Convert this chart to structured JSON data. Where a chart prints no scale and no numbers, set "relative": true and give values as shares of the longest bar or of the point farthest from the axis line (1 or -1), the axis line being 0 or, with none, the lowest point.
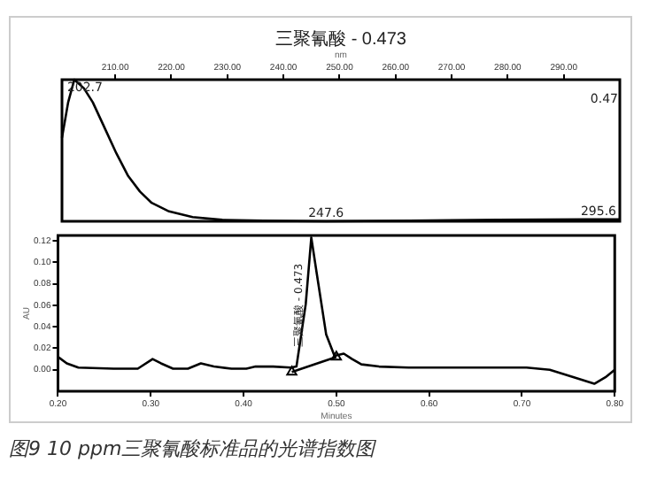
{
  "chart_data": [
    {
      "type": "line",
      "title": "三聚氰酸 - 0.473",
      "xlabel": "nm",
      "relative": true,
      "xlim": [
        200.5,
        300
      ],
      "xticks": [
        {
          "value": 210,
          "label": "210.00"
        },
        {
          "value": 220,
          "label": "220.00"
        },
        {
          "value": 230,
          "label": "230.00"
        },
        {
          "value": 240,
          "label": "240.00"
        },
        {
          "value": 250,
          "label": "250.00"
        },
        {
          "value": 260,
          "label": "260.00"
        },
        {
          "value": 270,
          "label": "270.00"
        },
        {
          "value": 280,
          "label": "280.00"
        },
        {
          "value": 290,
          "label": "290.00"
        }
      ],
      "x": [
        200.5,
        201.6,
        202.7,
        204.4,
        206.0,
        208.1,
        210.2,
        212.3,
        214.4,
        216.5,
        219.6,
        223.8,
        229.1,
        236.5,
        247.6,
        262.4,
        278.2,
        294.0,
        300.0
      ],
      "series": [
        {
          "color": "#000000",
          "values": [
            0.59,
            0.84,
            1,
            0.94,
            0.84,
            0.66,
            0.48,
            0.32,
            0.21,
            0.13,
            0.07,
            0.03,
            0.01,
            0.004,
            0,
            0.004,
            0.01,
            0.013,
            0.013
          ]
        }
      ],
      "annotations": [
        {
          "text": "202.7",
          "x": 202.7,
          "y": 1
        },
        {
          "text": "247.6",
          "x": 247.6,
          "y": 0
        },
        {
          "text": "295.6",
          "x": 295.6,
          "y": 0.013
        },
        "0.47"
      ],
      "grid": false,
      "legend": false,
      "marker": "none",
      "tick_labels": "x"
    },
    {
      "type": "line",
      "xlabel": "Minutes",
      "ylabel": "AU",
      "xlim": [
        0.2,
        0.8
      ],
      "ylim": [
        -0.02,
        0.125
      ],
      "xticks": [
        {
          "value": 0.2,
          "label": "0.20"
        },
        {
          "value": 0.3,
          "label": "0.30"
        },
        {
          "value": 0.4,
          "label": "0.40"
        },
        {
          "value": 0.5,
          "label": "0.50"
        },
        {
          "value": 0.6,
          "label": "0.60"
        },
        {
          "value": 0.7,
          "label": "0.70"
        },
        {
          "value": 0.8,
          "label": "0.80"
        }
      ],
      "yticks": [
        {
          "value": 0,
          "label": "0.00"
        },
        {
          "value": 0.02,
          "label": "0.02"
        },
        {
          "value": 0.04,
          "label": "0.04"
        },
        {
          "value": 0.06,
          "label": "0.06"
        },
        {
          "value": 0.08,
          "label": "0.08"
        },
        {
          "value": 0.1,
          "label": "0.10"
        },
        {
          "value": 0.12,
          "label": "0.12"
        }
      ],
      "series": [
        {
          "color": "#000000",
          "x": [
            0.2,
            0.2095,
            0.222,
            0.26,
            0.286,
            0.302,
            0.311,
            0.324,
            0.34,
            0.354,
            0.368,
            0.387,
            0.403,
            0.413,
            0.432,
            0.451,
            0.457,
            0.467,
            0.473,
            0.479,
            0.489,
            0.498,
            0.508,
            0.517,
            0.527,
            0.546,
            0.578,
            0.641,
            0.705,
            0.73,
            0.756,
            0.778,
            0.79,
            0.8
          ],
          "values": [
            0.012,
            0.006,
            0.002,
            0.001,
            0.001,
            0.01,
            0.006,
            0.001,
            0.001,
            0.006,
            0.003,
            0.001,
            0.001,
            0.003,
            0.003,
            0.002,
            0.003,
            0.061,
            0.123,
            0.089,
            0.033,
            0.013,
            0.015,
            0.01,
            0.005,
            0.003,
            0.002,
            0.002,
            0.002,
            0,
            -0.007,
            -0.013,
            -0.007,
            0
          ]
        },
        {
          "color": "#000000",
          "marker": "triangle",
          "x": [
            0.452,
            0.5
          ],
          "values": [
            -0.002,
            0.012
          ]
        }
      ],
      "annotations": [
        {
          "text": "三聚氰酸 - 0.473",
          "x": 0.473,
          "y": 0.06
        },
        "图9  10 ppm三聚氰酸标准品的光谱指数图"
      ],
      "grid": false,
      "legend": false,
      "marker": "none"
    }
  ]
}
